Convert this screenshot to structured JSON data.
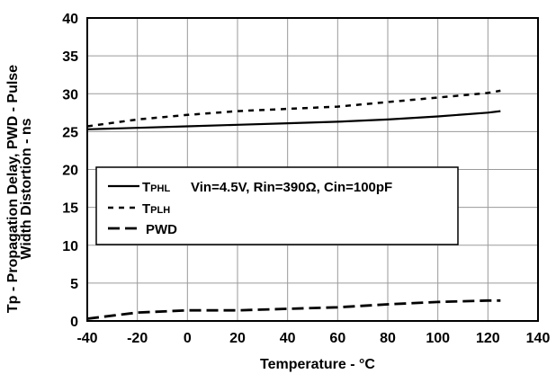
{
  "chart_data": {
    "type": "line",
    "xlabel": "Temperature - °C",
    "ylabel_line1": "Tp - Propagation Delay, PWD - Pulse",
    "ylabel_line2": "Width Distortion - ns",
    "xlim": [
      -40,
      140
    ],
    "ylim": [
      0,
      40
    ],
    "xticks": [
      -40,
      -20,
      0,
      20,
      40,
      60,
      80,
      100,
      120,
      140
    ],
    "yticks": [
      0,
      5,
      10,
      15,
      20,
      25,
      30,
      35,
      40
    ],
    "x": [
      -40,
      -20,
      0,
      20,
      40,
      60,
      80,
      100,
      120,
      125
    ],
    "series": [
      {
        "name_main": "T",
        "name_sub": "PHL",
        "style": "solid",
        "values": [
          25.3,
          25.5,
          25.7,
          25.9,
          26.1,
          26.3,
          26.6,
          27.0,
          27.5,
          27.7
        ]
      },
      {
        "name_main": "T",
        "name_sub": "PLH",
        "style": "dotted",
        "values": [
          25.7,
          26.6,
          27.2,
          27.7,
          28.0,
          28.3,
          28.9,
          29.5,
          30.1,
          30.4
        ]
      },
      {
        "name_main": "PWD",
        "name_sub": "",
        "style": "dashed",
        "values": [
          0.3,
          1.1,
          1.4,
          1.4,
          1.6,
          1.8,
          2.2,
          2.5,
          2.7,
          2.7
        ]
      }
    ],
    "legend_condition": "Vin=4.5V, Rin=390Ω, Cin=100pF",
    "grid": true,
    "legend_position": "center-left"
  }
}
